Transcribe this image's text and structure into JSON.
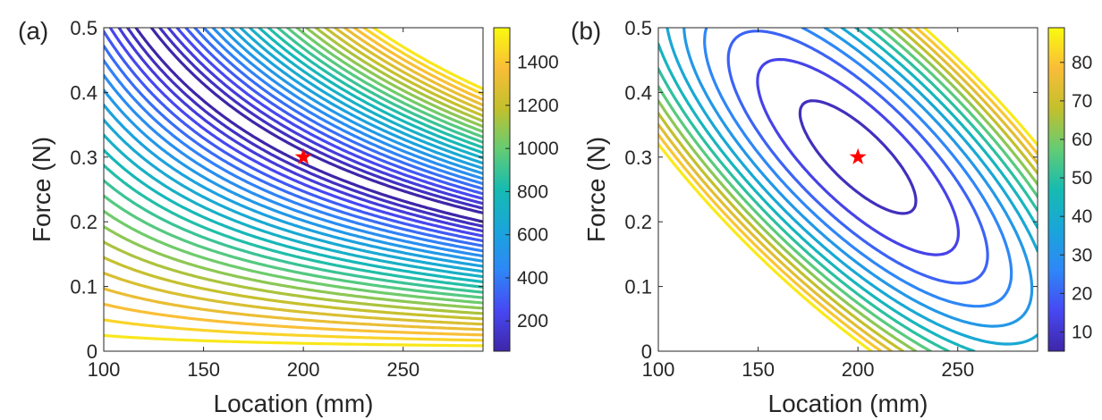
{
  "chart_data": [
    {
      "type": "contour",
      "panel_label": "(a)",
      "xlabel": "Location (mm)",
      "ylabel": "Force (N)",
      "xlim": [
        100,
        290
      ],
      "ylim": [
        0,
        0.5
      ],
      "xticks": [
        100,
        150,
        200,
        250
      ],
      "xtick_labels": [
        "100",
        "150",
        "200",
        "250"
      ],
      "yticks": [
        0,
        0.1,
        0.2,
        0.3,
        0.4,
        0.5
      ],
      "ytick_labels": [
        "0",
        "0.1",
        "0.2",
        "0.3",
        "0.4",
        "0.5"
      ],
      "grid": false,
      "minimum_marker": {
        "x": 200,
        "y": 0.3,
        "symbol": "star",
        "color": "#ff0000"
      },
      "colorbar": {
        "colormap": "parula",
        "range": [
          60,
          1560
        ],
        "ticks": [
          200,
          400,
          600,
          800,
          1000,
          1200,
          1400
        ],
        "tick_labels": [
          "200",
          "400",
          "600",
          "800",
          "1000",
          "1200",
          "1400"
        ]
      },
      "contour_levels": [
        60,
        120,
        180,
        240,
        300,
        360,
        420,
        480,
        540,
        600,
        660,
        720,
        780,
        840,
        900,
        960,
        1020,
        1080,
        1140,
        1200,
        1260,
        1320,
        1380,
        1440,
        1500
      ],
      "valley": "elongated diagonal trough through the minimum at (200, 0.3), following Force × Location ≈ 60"
    },
    {
      "type": "contour",
      "panel_label": "(b)",
      "xlabel": "Location (mm)",
      "ylabel": "Force (N)",
      "xlim": [
        100,
        290
      ],
      "ylim": [
        0,
        0.5
      ],
      "xticks": [
        100,
        150,
        200,
        250
      ],
      "xtick_labels": [
        "100",
        "150",
        "200",
        "250"
      ],
      "yticks": [
        0,
        0.1,
        0.2,
        0.3,
        0.4,
        0.5
      ],
      "ytick_labels": [
        "0",
        "0.1",
        "0.2",
        "0.3",
        "0.4",
        "0.5"
      ],
      "grid": false,
      "minimum_marker": {
        "x": 200,
        "y": 0.3,
        "symbol": "star",
        "color": "#ff0000"
      },
      "colorbar": {
        "colormap": "parula",
        "range": [
          5,
          89
        ],
        "ticks": [
          10,
          20,
          30,
          40,
          50,
          60,
          70,
          80
        ],
        "tick_labels": [
          "10",
          "20",
          "30",
          "40",
          "50",
          "60",
          "70",
          "80"
        ]
      },
      "contour_levels": [
        8,
        14,
        20,
        26,
        32,
        38,
        44,
        50,
        56,
        62,
        68,
        74,
        80,
        86
      ],
      "valley": "closed elliptical contours centred on the minimum at (200, 0.3), tilted along the Force–Location trade-off"
    }
  ]
}
